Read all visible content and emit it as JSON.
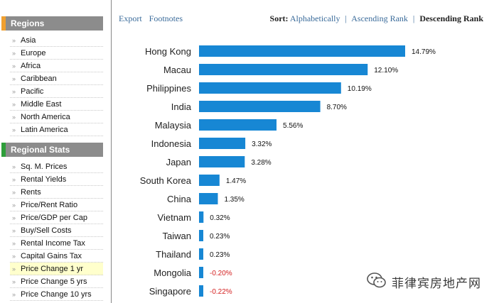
{
  "sidebar": {
    "regions_title": "Regions",
    "regions_accent": "#f0a030",
    "regions": [
      "Asia",
      "Europe",
      "Africa",
      "Caribbean",
      "Pacific",
      "Middle East",
      "North America",
      "Latin America"
    ],
    "stats_title": "Regional Stats",
    "stats_accent": "#2e9e3a",
    "stats": [
      "Sq. M. Prices",
      "Rental Yields",
      "Rents",
      "Price/Rent Ratio",
      "Price/GDP per Cap",
      "Buy/Sell Costs",
      "Rental Income Tax",
      "Capital Gains Tax",
      "Price Change 1 yr",
      "Price Change 5 yrs",
      "Price Change 10 yrs"
    ],
    "active_stat": "Price Change 1 yr"
  },
  "toolbar": {
    "export": "Export",
    "footnotes": "Footnotes",
    "sort_label": "Sort:",
    "sort_alpha": "Alphabetically",
    "sort_asc": "Ascending Rank",
    "sort_desc": "Descending Rank",
    "separator": "|"
  },
  "colors": {
    "bar": "#1787d4",
    "negative_label": "#d42020",
    "positive_label": "#111111"
  },
  "chart_data": {
    "type": "bar",
    "orientation": "horizontal",
    "categories": [
      "Hong Kong",
      "Macau",
      "Philippines",
      "India",
      "Malaysia",
      "Indonesia",
      "Japan",
      "South Korea",
      "China",
      "Vietnam",
      "Taiwan",
      "Thailand",
      "Mongolia",
      "Singapore"
    ],
    "values": [
      14.79,
      12.1,
      10.19,
      8.7,
      5.56,
      3.32,
      3.28,
      1.47,
      1.35,
      0.32,
      0.23,
      0.23,
      -0.2,
      -0.22
    ],
    "labels": [
      "14.79%",
      "12.10%",
      "10.19%",
      "8.70%",
      "5.56%",
      "3.32%",
      "3.28%",
      "1.47%",
      "1.35%",
      "0.32%",
      "0.23%",
      "0.23%",
      "-0.20%",
      "-0.22%"
    ],
    "title": "",
    "xlabel": "",
    "ylabel": "",
    "grid": false
  },
  "watermark": {
    "text": "菲律宾房地产网",
    "icon": "wechat-icon"
  }
}
